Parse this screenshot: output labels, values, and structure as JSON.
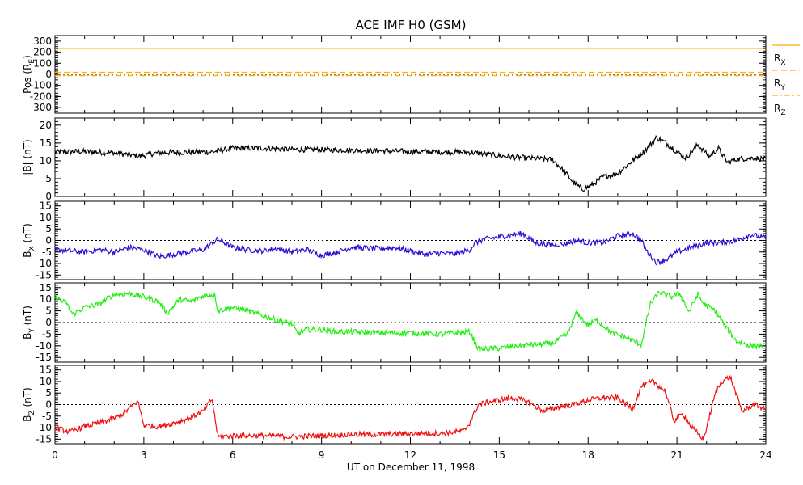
{
  "chart_data": {
    "type": "line",
    "title": "ACE IMF H0 (GSM)",
    "xlabel": "UT on December 11, 1998",
    "xlim": [
      0,
      24
    ],
    "xticks": [
      0,
      3,
      6,
      9,
      12,
      15,
      18,
      21,
      24
    ],
    "panels": [
      {
        "id": "pos",
        "ylabel": {
          "main": "Pos (R",
          "sub": "E",
          "end": ")"
        },
        "ylim": [
          -350,
          350
        ],
        "yticks": [
          300,
          200,
          100,
          0,
          -100,
          -200,
          -300
        ],
        "zero_line": true,
        "legend": [
          {
            "main": "R",
            "sub": "X",
            "color": "#ffb000",
            "dash": "none"
          },
          {
            "main": "R",
            "sub": "Y",
            "color": "#ffb000",
            "dash": "7,4"
          },
          {
            "main": "R",
            "sub": "Z",
            "color": "#ffb000",
            "dash": "7,3,2,3"
          }
        ],
        "series": [
          {
            "name": "R_X",
            "color": "#ffb000",
            "dash": "none",
            "x": [
              0,
              24
            ],
            "values": [
              234,
              234
            ]
          },
          {
            "name": "R_Y",
            "color": "#ffb000",
            "dash": "7,4",
            "x": [
              0,
              24
            ],
            "values": [
              18,
              18
            ]
          },
          {
            "name": "R_Z",
            "color": "#ffb000",
            "dash": "7,3,2,3",
            "x": [
              0,
              24
            ],
            "values": [
              -12,
              -12
            ]
          }
        ]
      },
      {
        "id": "bmag",
        "ylabel": {
          "main": "|B| (nT)",
          "sub": "",
          "end": ""
        },
        "ylim": [
          0,
          22
        ],
        "yticks": [
          20,
          15,
          10,
          5,
          0
        ],
        "zero_line": false,
        "series": [
          {
            "name": "|B|",
            "color": "#000000",
            "x": [
              0,
              1,
              2,
              2.9,
              3.5,
              4.5,
              5.3,
              6,
              7,
              8,
              9,
              10,
              11,
              12,
              13,
              14,
              15,
              16,
              16.8,
              17.2,
              17.5,
              17.8,
              18.1,
              18.5,
              19,
              19.5,
              20,
              20.3,
              20.6,
              21,
              21.3,
              21.7,
              22.1,
              22.4,
              22.7,
              23,
              23.5,
              24
            ],
            "values": [
              12.5,
              12.6,
              12.2,
              11.3,
              12.3,
              12.4,
              12.5,
              13.5,
              13.6,
              13.2,
              13.1,
              13.0,
              12.8,
              12.6,
              12.5,
              12.4,
              11.4,
              10.7,
              10.3,
              7,
              4,
              2,
              3,
              5.5,
              6.5,
              10,
              13.5,
              16.5,
              15.2,
              12.5,
              10.8,
              14.5,
              11.2,
              13.5,
              9.5,
              10.4,
              10.8,
              10.5
            ]
          }
        ]
      },
      {
        "id": "bx",
        "ylabel": {
          "main": "B",
          "sub": "X",
          "end": " (nT)"
        },
        "ylim": [
          -17,
          17
        ],
        "yticks": [
          15,
          10,
          5,
          0,
          -5,
          -10,
          -15
        ],
        "zero_line": true,
        "series": [
          {
            "name": "B_X",
            "color": "#2a10d2",
            "x": [
              0,
              0.5,
              1,
              1.5,
              2,
              2.5,
              3,
              3.5,
              4,
              4.5,
              5,
              5.5,
              6,
              6.5,
              7,
              7.5,
              8,
              8.5,
              9,
              9.5,
              10,
              11,
              11.5,
              12,
              12.5,
              13,
              13.5,
              14,
              14.2,
              14.5,
              15,
              15.5,
              15.8,
              16.2,
              16.8,
              17.2,
              17.6,
              18,
              18.5,
              19,
              19.5,
              19.8,
              20,
              20.3,
              20.7,
              21,
              21.5,
              22,
              22.5,
              23,
              23.5,
              24
            ],
            "values": [
              -4,
              -4.5,
              -5,
              -4,
              -5,
              -3,
              -4,
              -7,
              -6,
              -5,
              -4,
              0.5,
              -3,
              -4,
              -4.5,
              -3.5,
              -5,
              -4,
              -6.5,
              -5,
              -3,
              -3.5,
              -3,
              -4.5,
              -6,
              -5.5,
              -6,
              -4,
              -1,
              0.5,
              1.5,
              2.5,
              3,
              -1,
              -2,
              -1.5,
              0,
              -1,
              -1,
              2,
              3,
              0,
              -5,
              -9.5,
              -8,
              -5,
              -3,
              -1,
              -1,
              0,
              2.5,
              1
            ]
          }
        ]
      },
      {
        "id": "by",
        "ylabel": {
          "main": "B",
          "sub": "Y",
          "end": " (nT)"
        },
        "ylim": [
          -17,
          17
        ],
        "yticks": [
          15,
          10,
          5,
          0,
          -5,
          -10,
          -15
        ],
        "zero_line": true,
        "series": [
          {
            "name": "B_Y",
            "color": "#22ee11",
            "x": [
              0,
              0.4,
              0.6,
              1,
              1.5,
              2,
              2.5,
              3,
              3.5,
              3.8,
              4.2,
              4.6,
              5,
              5.4,
              5.5,
              6,
              6.5,
              7,
              7.5,
              8,
              8.2,
              8.5,
              9,
              9.5,
              10,
              11,
              12,
              13,
              14,
              14.3,
              15,
              16,
              16.8,
              17.3,
              17.6,
              18,
              18.3,
              18.8,
              19.3,
              19.8,
              20.1,
              20.4,
              20.8,
              21.1,
              21.4,
              21.7,
              21.9,
              22.3,
              22.6,
              23,
              23.5,
              24
            ],
            "values": [
              11,
              8,
              3.5,
              6.5,
              8,
              12,
              12.5,
              11,
              9,
              4,
              10,
              9,
              11.5,
              12,
              5,
              6.5,
              5,
              3,
              1,
              -0.5,
              -5,
              -3,
              -3,
              -4,
              -4,
              -4.5,
              -4.5,
              -5,
              -4,
              -11.5,
              -11,
              -9.5,
              -9,
              -5,
              4,
              -1,
              1,
              -4.5,
              -6.5,
              -9.5,
              8,
              13,
              11,
              12.5,
              4.5,
              12,
              8,
              5,
              -1,
              -8,
              -10,
              -10
            ]
          }
        ]
      },
      {
        "id": "bz",
        "ylabel": {
          "main": "B",
          "sub": "Z",
          "end": " (nT)"
        },
        "ylim": [
          -17,
          17
        ],
        "yticks": [
          15,
          10,
          5,
          0,
          -5,
          -10,
          -15
        ],
        "zero_line": true,
        "series": [
          {
            "name": "B_Z",
            "color": "#ee1111",
            "x": [
              0,
              0.5,
              1,
              1.5,
              2,
              2.3,
              2.8,
              3,
              3.5,
              4,
              4.5,
              5,
              5.3,
              5.5,
              6,
              7,
              8,
              9,
              10,
              11,
              12,
              13,
              13.8,
              14,
              14.3,
              14.6,
              15,
              15.5,
              16,
              16.5,
              17,
              17.5,
              18,
              18.5,
              19,
              19.5,
              19.8,
              20.2,
              20.6,
              20.9,
              21.2,
              21.5,
              21.9,
              22.3,
              22.5,
              22.8,
              23.2,
              23.6,
              24
            ],
            "values": [
              -10,
              -12,
              -9.5,
              -8,
              -6,
              -4,
              1.5,
              -9,
              -9.5,
              -8,
              -6,
              -3,
              2.5,
              -14,
              -13.5,
              -13.5,
              -14,
              -13.5,
              -13,
              -13,
              -12.5,
              -12.5,
              -11.5,
              -8,
              0,
              1,
              2,
              3,
              1,
              -3,
              -1,
              0,
              2,
              3,
              3,
              -2,
              8,
              10,
              6,
              -7,
              -4,
              -10,
              -15,
              5,
              10,
              12,
              -3,
              0,
              -2
            ]
          }
        ]
      }
    ]
  },
  "colors": {
    "frame": "#000000",
    "background": "#ffffff"
  }
}
